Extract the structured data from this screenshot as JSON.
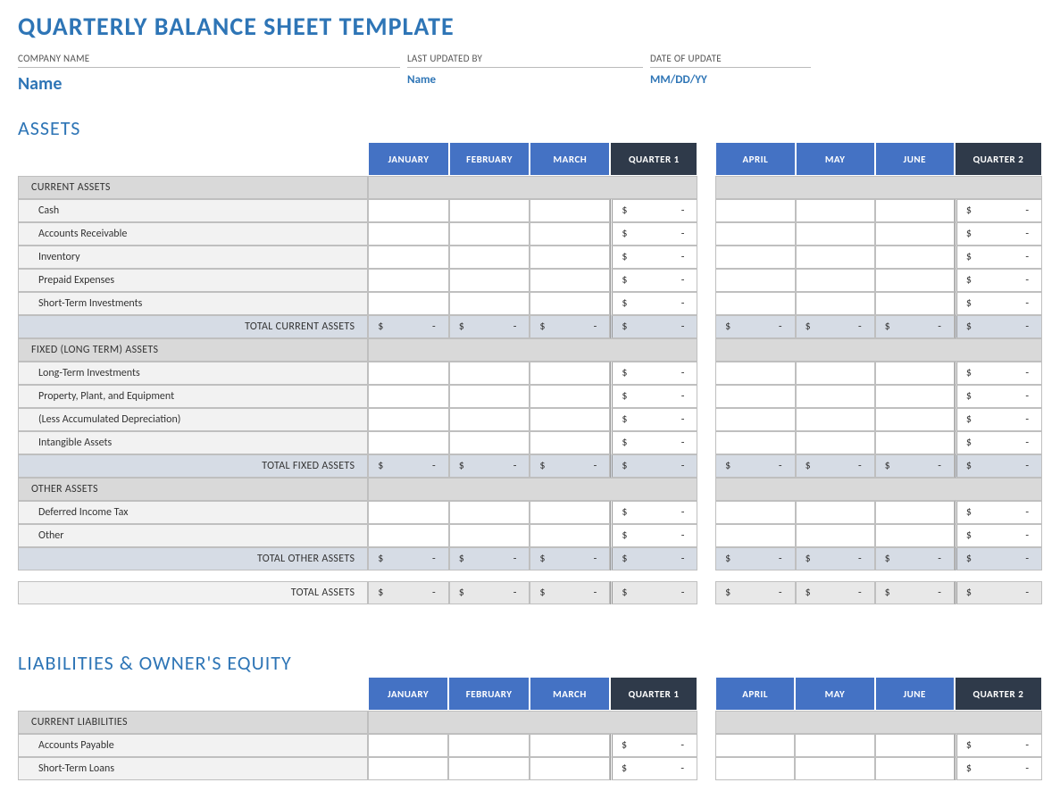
{
  "colors": {
    "accent": "#2e75b6",
    "month_header_bg": "#4472c4",
    "quarter_header_bg": "#2f3a4a",
    "category_bg": "#d9d9d9",
    "item_bg": "#f2f2f2",
    "subtotal_bg": "#d6dce5",
    "grand_bg": "#e8e8e8",
    "border": "#bfbfbf"
  },
  "title": "QUARTERLY BALANCE SHEET TEMPLATE",
  "header": {
    "company_label": "COMPANY NAME",
    "company_value": "Name",
    "updatedby_label": "LAST UPDATED BY",
    "updatedby_value": "Name",
    "date_label": "DATE OF UPDATE",
    "date_value": "MM/DD/YY"
  },
  "money": {
    "symbol": "$",
    "dash": "-"
  },
  "months_q1": [
    "JANUARY",
    "FEBRUARY",
    "MARCH"
  ],
  "quarter1_label": "QUARTER 1",
  "months_q2": [
    "APRIL",
    "MAY",
    "JUNE"
  ],
  "quarter2_label": "QUARTER 2",
  "assets": {
    "title": "ASSETS",
    "groups": [
      {
        "name": "CURRENT ASSETS",
        "items": [
          "Cash",
          "Accounts Receivable",
          "Inventory",
          "Prepaid Expenses",
          "Short-Term Investments"
        ],
        "total_label": "TOTAL CURRENT ASSETS"
      },
      {
        "name": "FIXED (LONG TERM) ASSETS",
        "items": [
          "Long-Term Investments",
          "Property, Plant, and Equipment",
          "(Less Accumulated Depreciation)",
          "Intangible Assets"
        ],
        "total_label": "TOTAL FIXED ASSETS"
      },
      {
        "name": "OTHER ASSETS",
        "items": [
          "Deferred Income Tax",
          "Other"
        ],
        "total_label": "TOTAL OTHER ASSETS"
      }
    ],
    "grand_total_label": "TOTAL ASSETS"
  },
  "liabilities": {
    "title": "LIABILITIES & OWNER'S EQUITY",
    "groups": [
      {
        "name": "CURRENT LIABILITIES",
        "items": [
          "Accounts Payable",
          "Short-Term Loans"
        ]
      }
    ]
  }
}
